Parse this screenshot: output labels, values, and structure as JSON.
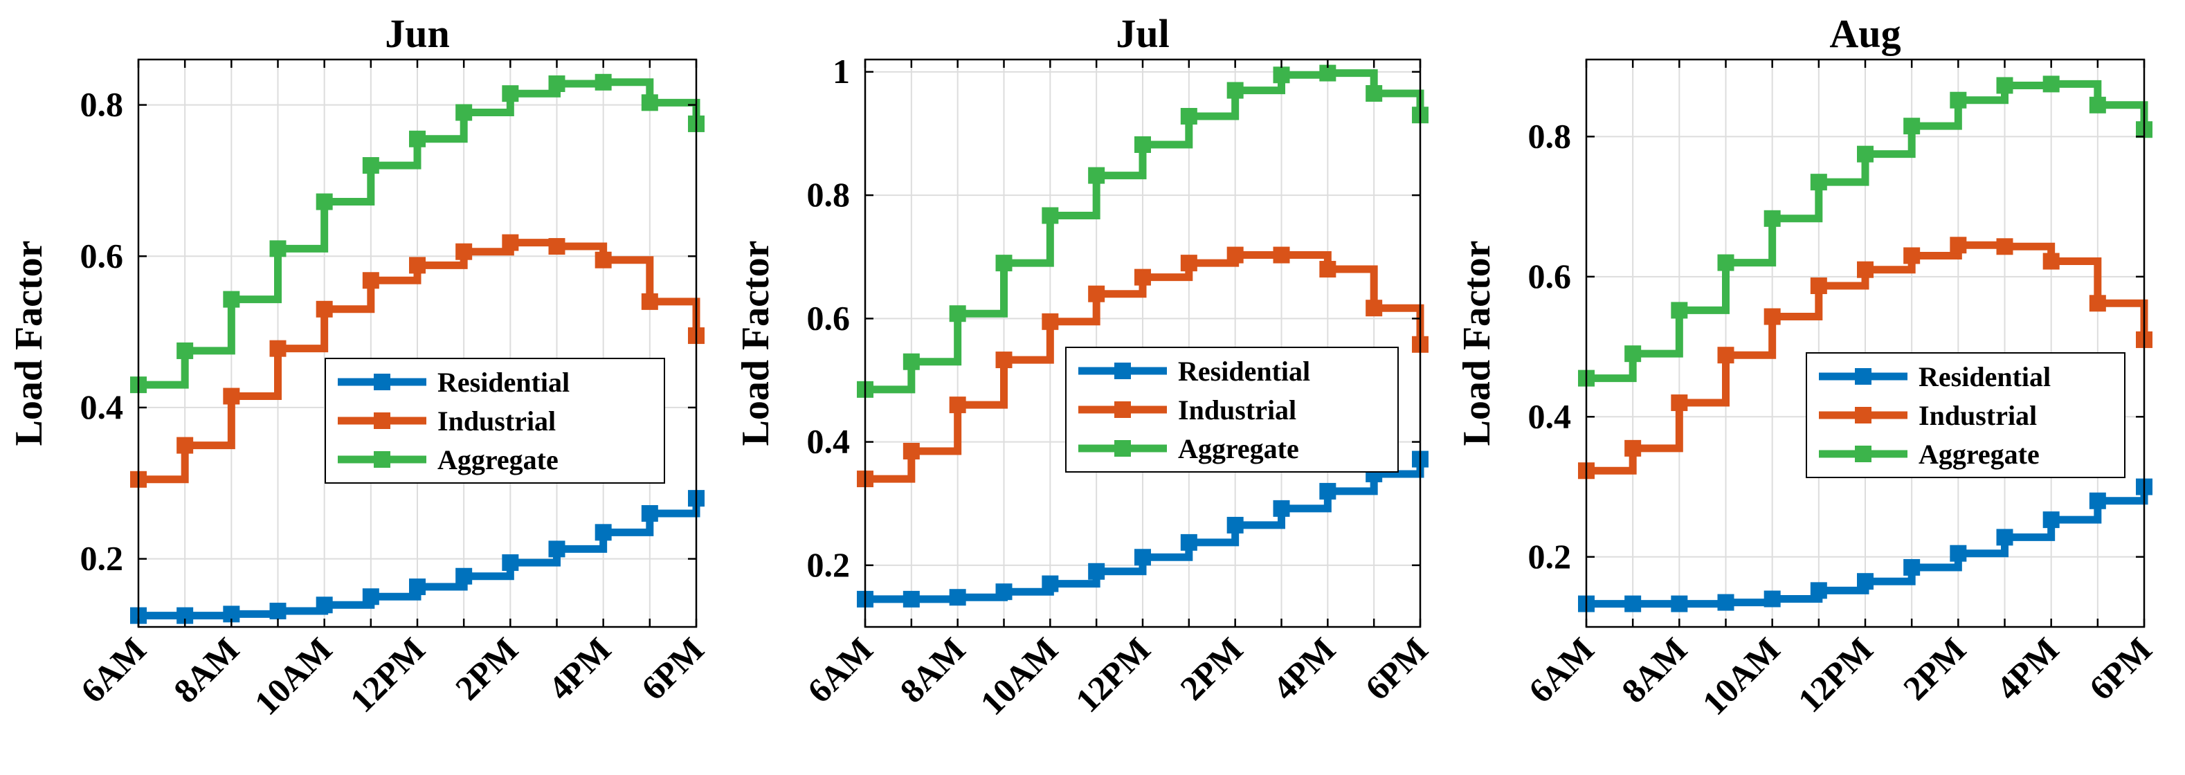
{
  "figure": {
    "ylabel": "Load Factor",
    "categories": [
      "6AM",
      "7AM",
      "8AM",
      "9AM",
      "10AM",
      "11AM",
      "12PM",
      "1PM",
      "2PM",
      "3PM",
      "4PM",
      "5PM",
      "6PM"
    ],
    "tick_labels": [
      "6AM",
      "8AM",
      "10AM",
      "12PM",
      "2PM",
      "4PM",
      "6PM"
    ],
    "colors": {
      "Residential": "#0072BD",
      "Industrial": "#D95319",
      "Aggregate": "#3CB44B",
      "grid": "#dddddd",
      "axis": "#000000"
    }
  },
  "chart_data": [
    {
      "type": "line",
      "step": true,
      "title": "Jun",
      "xlabel": "",
      "ylabel": "Load Factor",
      "ylim": [
        0.11,
        0.86
      ],
      "yticks": [
        0.2,
        0.4,
        0.6,
        0.8
      ],
      "ytick_labels": [
        "0.2",
        "0.4",
        "0.6",
        "0.8"
      ],
      "legend": "center-right",
      "grid": true,
      "series": [
        {
          "name": "Residential",
          "values": [
            0.125,
            0.125,
            0.127,
            0.131,
            0.139,
            0.15,
            0.163,
            0.177,
            0.195,
            0.213,
            0.235,
            0.26,
            0.28
          ]
        },
        {
          "name": "Industrial",
          "values": [
            0.305,
            0.35,
            0.415,
            0.478,
            0.53,
            0.568,
            0.588,
            0.606,
            0.618,
            0.613,
            0.595,
            0.54,
            0.495
          ]
        },
        {
          "name": "Aggregate",
          "values": [
            0.43,
            0.475,
            0.543,
            0.61,
            0.672,
            0.72,
            0.755,
            0.79,
            0.815,
            0.828,
            0.83,
            0.803,
            0.775
          ]
        }
      ]
    },
    {
      "type": "line",
      "step": true,
      "title": "Jul",
      "xlabel": "",
      "ylabel": "Load Factor",
      "ylim": [
        0.1,
        1.02
      ],
      "yticks": [
        0.2,
        0.4,
        0.6,
        0.8,
        1.0
      ],
      "ytick_labels": [
        "0.2",
        "0.4",
        "0.6",
        "0.8",
        "1"
      ],
      "legend": "center-right",
      "grid": true,
      "series": [
        {
          "name": "Residential",
          "values": [
            0.145,
            0.145,
            0.148,
            0.157,
            0.17,
            0.19,
            0.213,
            0.237,
            0.265,
            0.292,
            0.32,
            0.348,
            0.372
          ]
        },
        {
          "name": "Industrial",
          "values": [
            0.34,
            0.385,
            0.46,
            0.533,
            0.595,
            0.64,
            0.667,
            0.69,
            0.703,
            0.703,
            0.68,
            0.617,
            0.558
          ]
        },
        {
          "name": "Aggregate",
          "values": [
            0.485,
            0.53,
            0.608,
            0.69,
            0.767,
            0.832,
            0.882,
            0.928,
            0.97,
            0.995,
            0.998,
            0.965,
            0.93
          ]
        }
      ]
    },
    {
      "type": "line",
      "step": true,
      "title": "Aug",
      "xlabel": "",
      "ylabel": "Load Factor",
      "ylim": [
        0.1,
        0.91
      ],
      "yticks": [
        0.2,
        0.4,
        0.6,
        0.8
      ],
      "ytick_labels": [
        "0.2",
        "0.4",
        "0.6",
        "0.8"
      ],
      "legend": "center-right",
      "grid": true,
      "series": [
        {
          "name": "Residential",
          "values": [
            0.133,
            0.133,
            0.133,
            0.135,
            0.14,
            0.152,
            0.165,
            0.185,
            0.205,
            0.228,
            0.253,
            0.28,
            0.3
          ]
        },
        {
          "name": "Industrial",
          "values": [
            0.323,
            0.355,
            0.42,
            0.488,
            0.543,
            0.587,
            0.61,
            0.63,
            0.645,
            0.643,
            0.622,
            0.562,
            0.51
          ]
        },
        {
          "name": "Aggregate",
          "values": [
            0.455,
            0.49,
            0.552,
            0.62,
            0.683,
            0.735,
            0.775,
            0.815,
            0.852,
            0.873,
            0.875,
            0.845,
            0.81
          ]
        }
      ]
    }
  ]
}
